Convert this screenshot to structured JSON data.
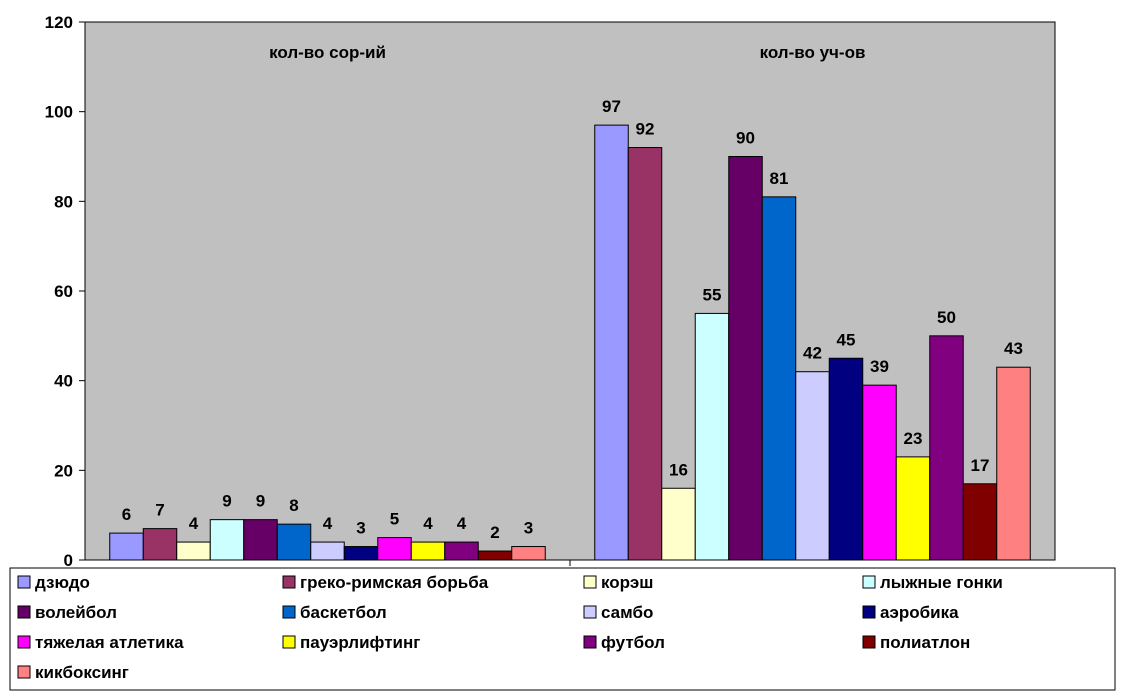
{
  "chart_data": {
    "type": "bar",
    "categories": [
      "кол-во сор-ий",
      "кол-во уч-ов"
    ],
    "series": [
      {
        "name": "дзюдо",
        "values": [
          6,
          97
        ],
        "color": "#9999FF"
      },
      {
        "name": "греко-римская борьба",
        "values": [
          7,
          92
        ],
        "color": "#993366"
      },
      {
        "name": "корэш",
        "values": [
          4,
          16
        ],
        "color": "#FFFFCC"
      },
      {
        "name": "лыжные гонки",
        "values": [
          9,
          55
        ],
        "color": "#CCFFFF"
      },
      {
        "name": "волейбол",
        "values": [
          9,
          90
        ],
        "color": "#660066"
      },
      {
        "name": "баскетбол",
        "values": [
          8,
          81
        ],
        "color": "#0066CC"
      },
      {
        "name": "самбо",
        "values": [
          4,
          42
        ],
        "color": "#CCCCFF"
      },
      {
        "name": "аэробика",
        "values": [
          3,
          45
        ],
        "color": "#000080"
      },
      {
        "name": "тяжелая атлетика",
        "values": [
          5,
          39
        ],
        "color": "#FF00FF"
      },
      {
        "name": "пауэрлифтинг",
        "values": [
          4,
          23
        ],
        "color": "#FFFF00"
      },
      {
        "name": "футбол",
        "values": [
          4,
          50
        ],
        "color": "#800080"
      },
      {
        "name": "полиатлон",
        "values": [
          2,
          17
        ],
        "color": "#800000"
      },
      {
        "name": "кикбоксинг",
        "values": [
          3,
          43
        ],
        "color": "#FF8080"
      }
    ],
    "ylim": [
      0,
      120
    ],
    "yticks": [
      "0",
      "20",
      "40",
      "60",
      "80",
      "100",
      "120"
    ],
    "plot_background": "#C0C0C0",
    "legend_position": "bottom",
    "grid": false
  }
}
